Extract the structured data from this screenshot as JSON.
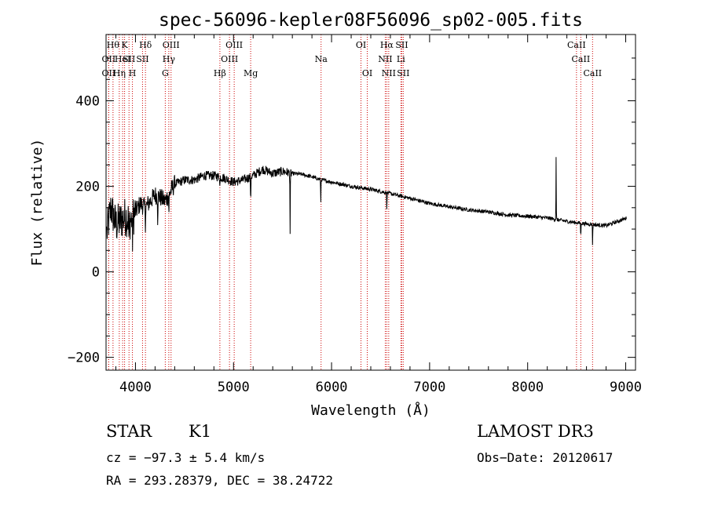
{
  "chart_data": {
    "type": "line",
    "title": "spec-56096-kepler08F56096_sp02-005.fits",
    "xlabel": "Wavelength (Å)",
    "ylabel": "Flux (relative)",
    "xlim": [
      3700,
      9100
    ],
    "ylim": [
      -230,
      555
    ],
    "x_ticks": [
      4000,
      5000,
      6000,
      7000,
      8000,
      9000
    ],
    "y_ticks": [
      -200,
      0,
      200,
      400
    ],
    "grid": false,
    "line_color": "#000000",
    "marker_color": "#cc0000",
    "series": [
      {
        "name": "flux",
        "continuum_points": [
          [
            3700,
            80
          ],
          [
            3750,
            150
          ],
          [
            3800,
            110
          ],
          [
            3850,
            120
          ],
          [
            3900,
            130
          ],
          [
            3950,
            120
          ],
          [
            4000,
            140
          ],
          [
            4050,
            160
          ],
          [
            4100,
            150
          ],
          [
            4150,
            165
          ],
          [
            4200,
            180
          ],
          [
            4250,
            175
          ],
          [
            4300,
            165
          ],
          [
            4350,
            185
          ],
          [
            4400,
            205
          ],
          [
            4500,
            215
          ],
          [
            4600,
            215
          ],
          [
            4700,
            225
          ],
          [
            4800,
            225
          ],
          [
            4900,
            220
          ],
          [
            5000,
            210
          ],
          [
            5100,
            215
          ],
          [
            5200,
            225
          ],
          [
            5300,
            240
          ],
          [
            5400,
            230
          ],
          [
            5500,
            235
          ],
          [
            5600,
            230
          ],
          [
            5700,
            228
          ],
          [
            5800,
            222
          ],
          [
            5900,
            215
          ],
          [
            6000,
            210
          ],
          [
            6200,
            200
          ],
          [
            6400,
            193
          ],
          [
            6600,
            183
          ],
          [
            6800,
            172
          ],
          [
            7000,
            160
          ],
          [
            7200,
            152
          ],
          [
            7400,
            145
          ],
          [
            7600,
            140
          ],
          [
            7800,
            133
          ],
          [
            8000,
            130
          ],
          [
            8200,
            126
          ],
          [
            8400,
            118
          ],
          [
            8600,
            112
          ],
          [
            8800,
            108
          ],
          [
            9000,
            125
          ]
        ],
        "absorption_features": [
          [
            3934,
            90
          ],
          [
            3969,
            80
          ],
          [
            4102,
            40
          ],
          [
            4227,
            60
          ],
          [
            4341,
            60
          ],
          [
            4861,
            30
          ],
          [
            5175,
            80
          ],
          [
            5577,
            150
          ],
          [
            5890,
            60
          ],
          [
            6563,
            40
          ],
          [
            8542,
            40
          ],
          [
            8662,
            50
          ]
        ],
        "emission_features": [
          [
            8290,
            160
          ]
        ]
      }
    ],
    "line_markers": [
      {
        "wavelength": 3727,
        "row": 1,
        "label": "OII"
      },
      {
        "wavelength": 3727,
        "row": 2,
        "label": "OII"
      },
      {
        "wavelength": 3771,
        "row": 0,
        "label": "Hθ"
      },
      {
        "wavelength": 3835,
        "row": 2,
        "label": "Hη"
      },
      {
        "wavelength": 3869,
        "row": 1,
        "label": "HeI"
      },
      {
        "wavelength": 3889,
        "row": 0,
        "label": "K"
      },
      {
        "wavelength": 3934,
        "row": 1,
        "label": "SII"
      },
      {
        "wavelength": 3969,
        "row": 2,
        "label": "H"
      },
      {
        "wavelength": 4102,
        "row": 0,
        "label": "Hδ"
      },
      {
        "wavelength": 4072,
        "row": 1,
        "label": "SII"
      },
      {
        "wavelength": 4340,
        "row": 1,
        "label": "Hγ"
      },
      {
        "wavelength": 4304,
        "row": 2,
        "label": "G"
      },
      {
        "wavelength": 4363,
        "row": 0,
        "label": "OIII"
      },
      {
        "wavelength": 4861,
        "row": 2,
        "label": "Hβ"
      },
      {
        "wavelength": 4959,
        "row": 1,
        "label": "OIII"
      },
      {
        "wavelength": 5007,
        "row": 0,
        "label": "OIII"
      },
      {
        "wavelength": 5175,
        "row": 2,
        "label": "Mg"
      },
      {
        "wavelength": 5893,
        "row": 1,
        "label": "Na"
      },
      {
        "wavelength": 6300,
        "row": 0,
        "label": "OI"
      },
      {
        "wavelength": 6364,
        "row": 2,
        "label": "OI"
      },
      {
        "wavelength": 6548,
        "row": 1,
        "label": "NII"
      },
      {
        "wavelength": 6563,
        "row": 0,
        "label": "Hα"
      },
      {
        "wavelength": 6583,
        "row": 2,
        "label": "NII"
      },
      {
        "wavelength": 6707,
        "row": 1,
        "label": "Li"
      },
      {
        "wavelength": 6716,
        "row": 0,
        "label": "SII"
      },
      {
        "wavelength": 6731,
        "row": 2,
        "label": "SII"
      },
      {
        "wavelength": 8498,
        "row": 0,
        "label": "CaII"
      },
      {
        "wavelength": 8542,
        "row": 1,
        "label": "CaII"
      },
      {
        "wavelength": 8662,
        "row": 2,
        "label": "CaII"
      }
    ]
  },
  "info": {
    "object_class": "STAR",
    "subclass": "K1",
    "survey": "LAMOST DR3",
    "redshift": "cz = −97.3 ± 5.4 km/s",
    "obs_date": "Obs−Date: 20120617",
    "coords": "RA = 293.28379, DEC =  38.24722"
  }
}
